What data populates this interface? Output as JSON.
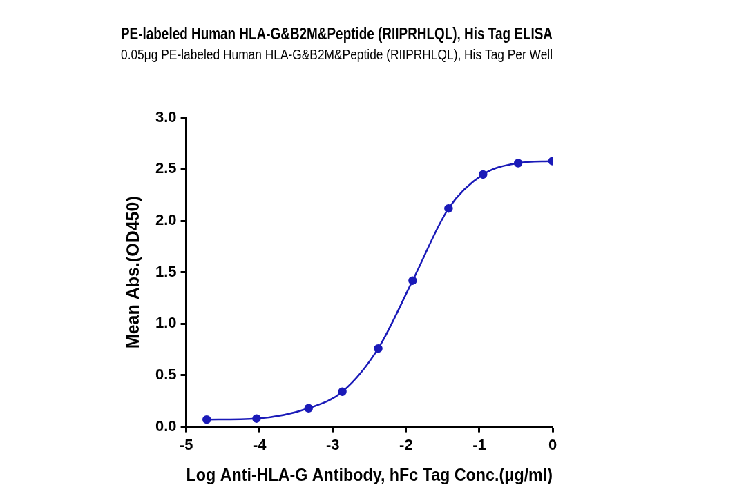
{
  "chart_data": {
    "type": "scatter",
    "title": "PE-labeled Human HLA-G&B2M&Peptide (RIIPRHLQL), His Tag ELISA",
    "subtitle": "0.05μg PE-labeled Human HLA-G&B2M&Peptide (RIIPRHLQL), His Tag Per Well",
    "x_label": "Log Anti-HLA-G Antibody, hFc Tag Conc.(μg/ml)",
    "y_label": "Mean Abs.(OD450)",
    "x": [
      -4.72,
      -4.04,
      -3.33,
      -2.87,
      -2.38,
      -1.91,
      -1.42,
      -0.95,
      -0.47,
      0
    ],
    "values": [
      0.07,
      0.08,
      0.18,
      0.34,
      0.76,
      1.42,
      2.12,
      2.45,
      2.56,
      2.58
    ],
    "color": "#1a1ab8",
    "marker": "circle",
    "line_style": "solid",
    "xlim": [
      -5,
      0
    ],
    "xticks": [
      -5,
      -4,
      -3,
      -2,
      -1,
      0
    ],
    "ylim": [
      0,
      3
    ],
    "yticks": [
      {
        "value": 0,
        "label": "0.0"
      },
      {
        "value": 0.5,
        "label": "0.5"
      },
      {
        "value": 1,
        "label": "1.0"
      },
      {
        "value": 1.5,
        "label": "1.5"
      },
      {
        "value": 2,
        "label": "2.0"
      },
      {
        "value": 2.5,
        "label": "2.5"
      },
      {
        "value": 3,
        "label": "3.0"
      }
    ],
    "grid": false
  }
}
